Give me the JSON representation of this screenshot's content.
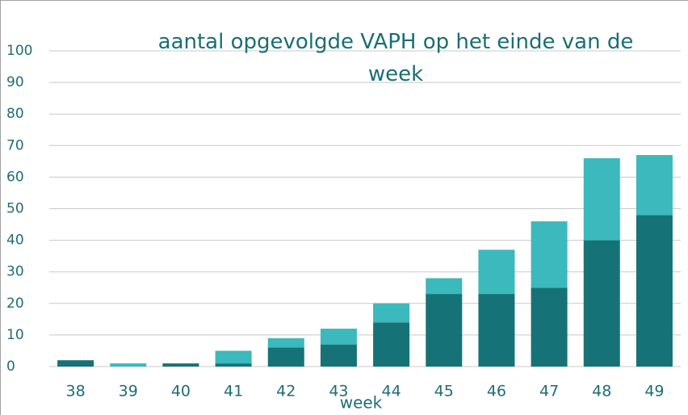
{
  "chart_data": {
    "type": "stacked_bar",
    "title": "aantal opgevolgde VAPH op het einde van de week",
    "x_label": "week",
    "categories": [
      "38",
      "39",
      "40",
      "41",
      "42",
      "43",
      "44",
      "45",
      "46",
      "47",
      "48",
      "49"
    ],
    "series": [
      {
        "color": "#157377",
        "values": [
          2,
          0,
          1,
          1,
          6,
          7,
          14,
          23,
          23,
          25,
          40,
          48
        ]
      },
      {
        "color": "#3bb9bd",
        "values": [
          0,
          1,
          0,
          4,
          3,
          5,
          6,
          5,
          14,
          21,
          26,
          19
        ]
      }
    ],
    "ylim": [
      0,
      100
    ],
    "yticks": [
      0,
      10,
      20,
      30,
      40,
      50,
      60,
      70,
      80,
      90,
      100
    ],
    "grid": true
  }
}
